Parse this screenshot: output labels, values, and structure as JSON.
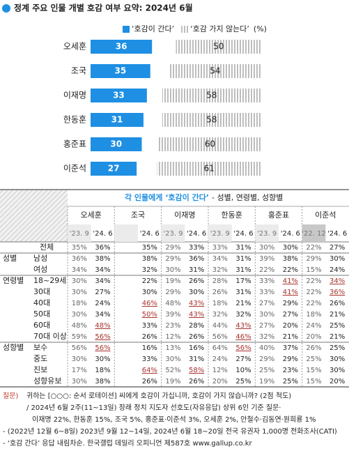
{
  "chart_data": {
    "type": "bar",
    "orientation": "horizontal",
    "title": "정계 주요 인물 개별 호감 여부 요약: 2024년 6월",
    "unit": "(%)",
    "categories": [
      "오세훈",
      "조국",
      "이재명",
      "한동훈",
      "홍준표",
      "이준석"
    ],
    "series": [
      {
        "name": "‘호감이 간다’",
        "color": "#1e8fe3",
        "values": [
          36,
          35,
          33,
          31,
          30,
          27
        ]
      },
      {
        "name": "‘호감 가지 않는다’",
        "color": "#b4b4b4",
        "pattern": "stripes",
        "values": [
          50,
          54,
          58,
          58,
          60,
          61
        ]
      }
    ],
    "xlim": [
      0,
      100
    ]
  },
  "table": {
    "title": "각 인물에게 ‘호감이 간다’",
    "subtitle": "- 성별, 연령별, 성향별",
    "columns": [
      {
        "name": "오세훈",
        "periods": [
          "'23. 9",
          "'24. 6"
        ]
      },
      {
        "name": "조국",
        "periods": [
          "'24. 6"
        ]
      },
      {
        "name": "이재명",
        "periods": [
          "'23. 9",
          "'24. 6"
        ]
      },
      {
        "name": "한동훈",
        "periods": [
          "'23. 9",
          "'24. 6"
        ]
      },
      {
        "name": "홍준표",
        "periods": [
          "'23. 9",
          "'24. 6"
        ]
      },
      {
        "name": "이준석",
        "periods": [
          "'22. 12",
          "'24. 6"
        ]
      }
    ],
    "rows": [
      {
        "label": "전체",
        "values": [
          [
            "35%",
            "36%"
          ],
          [
            "35%"
          ],
          [
            "29%",
            "33%"
          ],
          [
            "33%",
            "31%"
          ],
          [
            "30%",
            "30%"
          ],
          [
            "22%",
            "27%"
          ]
        ]
      },
      {
        "group": "성별",
        "label": "남성",
        "values": [
          [
            "36%",
            "38%"
          ],
          [
            "38%"
          ],
          [
            "29%",
            "36%"
          ],
          [
            "34%",
            "31%"
          ],
          [
            "39%",
            "38%"
          ],
          [
            "29%",
            "30%"
          ]
        ]
      },
      {
        "label": "여성",
        "values": [
          [
            "34%",
            "34%"
          ],
          [
            "32%"
          ],
          [
            "30%",
            "31%"
          ],
          [
            "32%",
            "31%"
          ],
          [
            "22%",
            "22%"
          ],
          [
            "15%",
            "24%"
          ]
        ]
      },
      {
        "group": "연령별",
        "label": "18~29세",
        "values": [
          [
            "30%",
            "34%"
          ],
          [
            "22%"
          ],
          [
            "19%",
            "26%"
          ],
          [
            "28%",
            "17%"
          ],
          [
            "33%",
            {
              "text": "41%",
              "highlight": true
            }
          ],
          [
            "22%",
            {
              "text": "34%",
              "highlight": true
            }
          ]
        ]
      },
      {
        "label": "30대",
        "values": [
          [
            "30%",
            "27%"
          ],
          [
            "30%"
          ],
          [
            "29%",
            "30%"
          ],
          [
            "26%",
            "31%"
          ],
          [
            "33%",
            {
              "text": "41%",
              "highlight": true
            }
          ],
          [
            "22%",
            {
              "text": "36%",
              "highlight": true
            }
          ]
        ]
      },
      {
        "label": "40대",
        "values": [
          [
            "18%",
            "24%"
          ],
          [
            {
              "text": "46%",
              "highlight": true
            }
          ],
          [
            "48%",
            {
              "text": "43%",
              "highlight": true
            }
          ],
          [
            "18%",
            "21%"
          ],
          [
            "27%",
            "29%"
          ],
          [
            "22%",
            "26%"
          ]
        ]
      },
      {
        "label": "50대",
        "values": [
          [
            "30%",
            "34%"
          ],
          [
            {
              "text": "50%",
              "highlight": true
            }
          ],
          [
            "39%",
            {
              "text": "43%",
              "highlight": true
            }
          ],
          [
            "32%",
            "32%"
          ],
          [
            "30%",
            "27%"
          ],
          [
            "18%",
            "21%"
          ]
        ]
      },
      {
        "label": "60대",
        "values": [
          [
            "48%",
            {
              "text": "48%",
              "highlight": true
            }
          ],
          [
            "33%"
          ],
          [
            "23%",
            "28%"
          ],
          [
            "44%",
            {
              "text": "43%",
              "highlight": true
            }
          ],
          [
            "27%",
            "20%"
          ],
          [
            "24%",
            "25%"
          ]
        ]
      },
      {
        "label": "70대 이상",
        "values": [
          [
            "59%",
            {
              "text": "56%",
              "highlight": true
            }
          ],
          [
            "26%"
          ],
          [
            "12%",
            "26%"
          ],
          [
            "56%",
            {
              "text": "46%",
              "highlight": true
            }
          ],
          [
            "32%",
            "21%"
          ],
          [
            "20%",
            "21%"
          ]
        ]
      },
      {
        "group": "성향별",
        "label": "보수",
        "values": [
          [
            "56%",
            {
              "text": "56%",
              "highlight": true
            }
          ],
          [
            "16%"
          ],
          [
            "13%",
            "16%"
          ],
          [
            "64%",
            {
              "text": "56%",
              "highlight": true
            }
          ],
          [
            "40%",
            "37%"
          ],
          [
            "26%",
            "25%"
          ]
        ]
      },
      {
        "label": "중도",
        "values": [
          [
            "30%",
            "30%"
          ],
          [
            "33%"
          ],
          [
            "30%",
            "31%"
          ],
          [
            "24%",
            "27%"
          ],
          [
            "29%",
            "29%"
          ],
          [
            "25%",
            "30%"
          ]
        ]
      },
      {
        "label": "진보",
        "values": [
          [
            "17%",
            "18%"
          ],
          [
            {
              "text": "64%",
              "highlight": true
            }
          ],
          [
            "52%",
            {
              "text": "58%",
              "highlight": true
            }
          ],
          [
            "12%",
            "10%"
          ],
          [
            "25%",
            "23%"
          ],
          [
            "15%",
            "30%"
          ]
        ]
      },
      {
        "label": "성향유보",
        "values": [
          [
            "30%",
            "38%"
          ],
          [
            "26%"
          ],
          [
            "19%",
            "26%"
          ],
          [
            "20%",
            "25%"
          ],
          [
            "19%",
            "25%"
          ],
          [
            "15%",
            "20%"
          ]
        ]
      }
    ]
  },
  "notes": {
    "question_label": "질문)",
    "lines": [
      "귀하는 [○○○: 순서 로테이션] 씨에게 호감이 가십니까, 호감이 가지 않습니까? (2점 척도)",
      "/ 2024년 6월 2주(11~13일) 장래 정치 지도자 선호도(자유응답) 상위 6인 기준 질문·",
      "이재명 22%, 한동훈 15%, 조국 5%, 홍준표·이준석 3%, 오세훈 2%, 안철수·김동연·원희룡 1%",
      "- (2022년 12월 6~8일) 2023년 9월 12~14일, 2024년 6월 18~20일 전국 유권자 1,000명 전화조사(CATI)",
      "- ‘호감 간다’ 응답 내림차순. 한국갤럽 데일리 오피니언 제587호 www.gallup.co.kr"
    ]
  }
}
